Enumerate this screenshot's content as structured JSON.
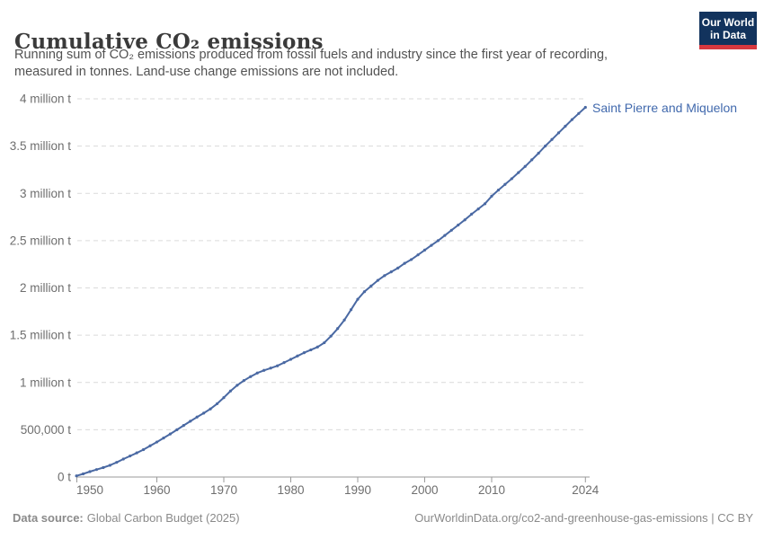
{
  "header": {
    "title": "Cumulative CO₂ emissions",
    "subtitle_lines": [
      "Running sum of CO₂ emissions produced from fossil fuels and industry since the first year of recording,",
      "measured in tonnes. Land-use change emissions are not included."
    ]
  },
  "logo": {
    "line1": "Our World",
    "line2": "in Data",
    "bg_color": "#12335d",
    "accent_color": "#d7383f"
  },
  "chart_data": {
    "type": "line",
    "title": "Cumulative CO₂ emissions",
    "entity": "Saint Pierre and Miquelon",
    "unit": "tonnes",
    "line_color": "#4a69a3",
    "entity_label_color": "#4169ad",
    "grid": "dashed horizontal",
    "xlim": [
      1948,
      2025
    ],
    "ylim": [
      0,
      4000000
    ],
    "start_year": 1948,
    "end_year": 2024,
    "values": [
      12000,
      33000,
      57000,
      79000,
      100000,
      124000,
      155000,
      190000,
      222000,
      255000,
      290000,
      330000,
      370000,
      412000,
      455000,
      500000,
      545000,
      590000,
      634000,
      676000,
      720000,
      775000,
      840000,
      910000,
      970000,
      1020000,
      1062000,
      1100000,
      1128000,
      1152000,
      1176000,
      1210000,
      1245000,
      1280000,
      1315000,
      1345000,
      1375000,
      1420000,
      1490000,
      1570000,
      1660000,
      1770000,
      1880000,
      1960000,
      2020000,
      2080000,
      2130000,
      2170000,
      2210000,
      2260000,
      2300000,
      2350000,
      2400000,
      2450000,
      2500000,
      2555000,
      2610000,
      2665000,
      2720000,
      2780000,
      2835000,
      2890000,
      2970000,
      3035000,
      3095000,
      3155000,
      3220000,
      3285000,
      3355000,
      3425000,
      3500000,
      3570000,
      3640000,
      3710000,
      3780000,
      3845000,
      3910000
    ],
    "x_ticks": [
      1950,
      1960,
      1970,
      1980,
      1990,
      2000,
      2010,
      2024
    ],
    "y_ticks": [
      {
        "value": 0,
        "label": "0 t"
      },
      {
        "value": 500000,
        "label": "500,000 t"
      },
      {
        "value": 1000000,
        "label": "1 million t"
      },
      {
        "value": 1500000,
        "label": "1.5 million t"
      },
      {
        "value": 2000000,
        "label": "2 million t"
      },
      {
        "value": 2500000,
        "label": "2.5 million t"
      },
      {
        "value": 3000000,
        "label": "3 million t"
      },
      {
        "value": 3500000,
        "label": "3.5 million t"
      },
      {
        "value": 4000000,
        "label": "4 million t"
      }
    ]
  },
  "footer": {
    "source_label": "Data source:",
    "source_value": "Global Carbon Budget (2025)",
    "link": "OurWorldinData.org/co2-and-greenhouse-gas-emissions | CC BY"
  }
}
